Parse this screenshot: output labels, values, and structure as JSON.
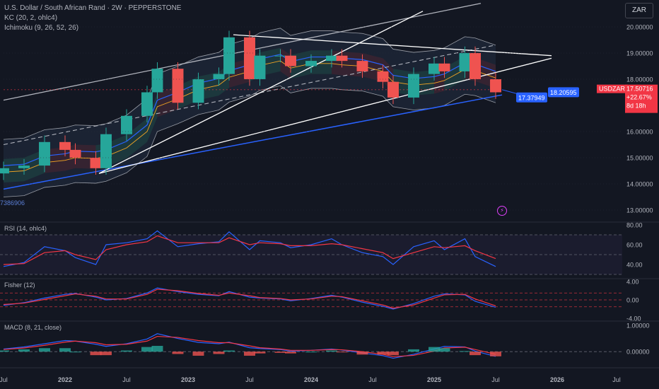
{
  "header": {
    "symbol_line": "U.S. Dollar / South African Rand · 2W · PEPPERSTONE",
    "kc_label": "KC (20, 2, ohlc4)",
    "ichimoku_label": "Ichimoku (9, 26, 52, 26)"
  },
  "currency_button": "ZAR",
  "colors": {
    "background": "#131722",
    "up": "#26a69a",
    "down": "#ef5350",
    "price_line": "#f23645",
    "line_blue": "#2962ff",
    "line_red": "#f23645",
    "kc_fill": "#2a3a52",
    "cloud_green": "#1e4a45",
    "cloud_red": "#4a2430"
  },
  "price_panel": {
    "y_ticks": [
      "20.00000",
      "19.00000",
      "18.00000",
      "16.00000",
      "15.00000",
      "14.00000",
      "13.00000"
    ],
    "badge_symbol": "USDZAR",
    "badge_price": "17.50716",
    "badge_change": "+22.67%",
    "badge_time": "8d 18h",
    "label_a": "17.37949",
    "label_b": "18.20595",
    "left_edge_label": "7386906"
  },
  "rsi_panel": {
    "title": "RSI (14, ohlc4)",
    "y_ticks": [
      "80.00",
      "60.00",
      "40.00"
    ]
  },
  "fisher_panel": {
    "title": "Fisher (12)",
    "y_ticks": [
      "4.00",
      "0.00",
      "-4.00"
    ]
  },
  "macd_panel": {
    "title": "MACD (8, 21, close)",
    "y_ticks": [
      "1.00000",
      "0.00000"
    ]
  },
  "x_axis": {
    "labels": [
      "Jul",
      "2022",
      "Jul",
      "2023",
      "Jul",
      "2024",
      "Jul",
      "2025",
      "Jul",
      "2026",
      "Jul"
    ]
  },
  "chart_data": {
    "type": "candlestick",
    "symbol": "USDZAR",
    "timeframe": "2W",
    "x_range": [
      "2021-07",
      "2026-07"
    ],
    "ylim": [
      12.8,
      20.6
    ],
    "last_price": 17.50716,
    "close_series": [
      {
        "t": "2021-07",
        "v": 14.6
      },
      {
        "t": "2021-09",
        "v": 14.7
      },
      {
        "t": "2021-11",
        "v": 15.6
      },
      {
        "t": "2022-01",
        "v": 15.3
      },
      {
        "t": "2022-02",
        "v": 15.0
      },
      {
        "t": "2022-04",
        "v": 14.6
      },
      {
        "t": "2022-05",
        "v": 15.9
      },
      {
        "t": "2022-07",
        "v": 16.6
      },
      {
        "t": "2022-09",
        "v": 17.5
      },
      {
        "t": "2022-10",
        "v": 18.4
      },
      {
        "t": "2022-12",
        "v": 17.1
      },
      {
        "t": "2023-02",
        "v": 18.0
      },
      {
        "t": "2023-04",
        "v": 18.2
      },
      {
        "t": "2023-05",
        "v": 19.6
      },
      {
        "t": "2023-07",
        "v": 18.0
      },
      {
        "t": "2023-08",
        "v": 18.9
      },
      {
        "t": "2023-10",
        "v": 18.9
      },
      {
        "t": "2023-11",
        "v": 18.5
      },
      {
        "t": "2024-01",
        "v": 18.7
      },
      {
        "t": "2024-03",
        "v": 18.9
      },
      {
        "t": "2024-04",
        "v": 18.7
      },
      {
        "t": "2024-06",
        "v": 18.3
      },
      {
        "t": "2024-08",
        "v": 17.9
      },
      {
        "t": "2024-09",
        "v": 17.3
      },
      {
        "t": "2024-11",
        "v": 18.2
      },
      {
        "t": "2025-01",
        "v": 18.6
      },
      {
        "t": "2025-02",
        "v": 18.3
      },
      {
        "t": "2025-04",
        "v": 19.0
      },
      {
        "t": "2025-05",
        "v": 18.0
      },
      {
        "t": "2025-07",
        "v": 17.5
      }
    ],
    "rsi": {
      "ylim": [
        30,
        80
      ],
      "levels": [
        70,
        50,
        30
      ],
      "series": [
        {
          "values": [
            38,
            42,
            58,
            54,
            47,
            40,
            60,
            62,
            66,
            74,
            58,
            61,
            63,
            73,
            55,
            64,
            62,
            57,
            60,
            66,
            60,
            52,
            48,
            40,
            58,
            64,
            55,
            66,
            48,
            38
          ]
        },
        {
          "values": [
            40,
            41,
            52,
            54,
            50,
            45,
            55,
            60,
            63,
            69,
            62,
            62,
            62,
            67,
            60,
            62,
            61,
            59,
            59,
            61,
            60,
            56,
            52,
            46,
            52,
            58,
            57,
            59,
            54,
            46
          ]
        }
      ]
    },
    "fisher": {
      "ylim": [
        -4,
        4
      ],
      "levels": [
        1.5,
        0,
        -1.5
      ],
      "series": [
        {
          "values": [
            -1.2,
            -0.6,
            0.4,
            1.2,
            1.4,
            0.6,
            0.0,
            0.3,
            1.5,
            2.6,
            1.8,
            1.2,
            0.9,
            1.8,
            0.6,
            0.4,
            0.2,
            -0.2,
            0.3,
            1.0,
            0.6,
            -0.5,
            -1.4,
            -2.0,
            -0.8,
            0.8,
            1.3,
            1.1,
            -0.3,
            -1.6
          ]
        },
        {
          "values": [
            -1.0,
            -0.7,
            0.1,
            0.9,
            1.3,
            0.8,
            0.2,
            0.2,
            1.2,
            2.3,
            2.0,
            1.4,
            1.0,
            1.5,
            0.9,
            0.5,
            0.3,
            0.0,
            0.2,
            0.8,
            0.7,
            -0.2,
            -1.1,
            -1.8,
            -1.1,
            0.4,
            1.1,
            1.2,
            0.2,
            -1.3
          ]
        }
      ]
    },
    "macd": {
      "ylim": [
        -0.45,
        1.05
      ],
      "series": [
        {
          "values": [
            0.1,
            0.18,
            0.3,
            0.42,
            0.4,
            0.28,
            0.2,
            0.3,
            0.48,
            0.68,
            0.5,
            0.35,
            0.3,
            0.36,
            0.15,
            0.12,
            0.08,
            0.02,
            0.05,
            0.1,
            0.06,
            -0.05,
            -0.15,
            -0.25,
            -0.1,
            0.1,
            0.2,
            0.18,
            0.02,
            -0.18
          ]
        },
        {
          "values": [
            0.08,
            0.14,
            0.24,
            0.36,
            0.4,
            0.34,
            0.26,
            0.28,
            0.4,
            0.58,
            0.54,
            0.42,
            0.34,
            0.34,
            0.22,
            0.15,
            0.1,
            0.05,
            0.05,
            0.08,
            0.07,
            0.0,
            -0.1,
            -0.19,
            -0.14,
            0.02,
            0.14,
            0.17,
            0.08,
            -0.1
          ]
        }
      ]
    }
  }
}
